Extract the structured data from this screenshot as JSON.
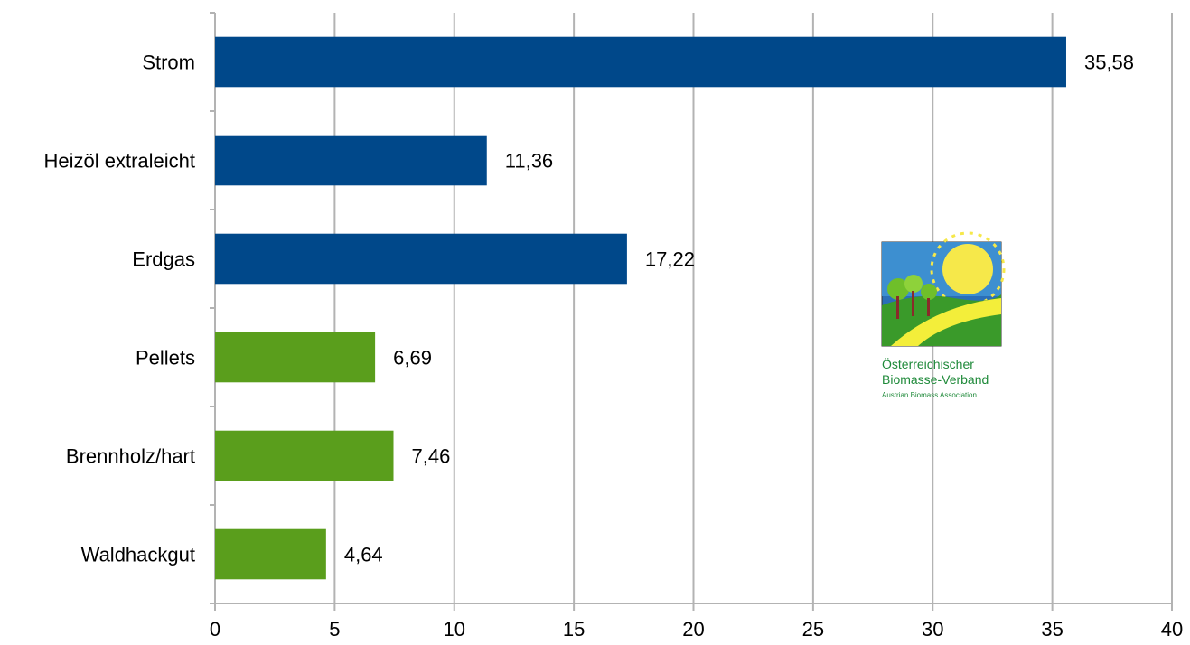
{
  "chart_data": {
    "type": "bar",
    "orientation": "horizontal",
    "title": "",
    "xlabel": "",
    "ylabel": "",
    "categories": [
      "Strom",
      "Heizöl extraleicht",
      "Erdgas",
      "Pellets",
      "Brennholz/hart",
      "Waldhackgut"
    ],
    "values": [
      35.58,
      11.36,
      17.22,
      6.69,
      7.46,
      4.64
    ],
    "value_labels": [
      "35,58",
      "11,36",
      "17,22",
      "6,69",
      "7,46",
      "4,64"
    ],
    "bar_colors": [
      "#00488a",
      "#00488a",
      "#00488a",
      "#5a9e1c",
      "#5a9e1c",
      "#5a9e1c"
    ],
    "xlim": [
      0,
      40
    ],
    "x_ticks": [
      0,
      5,
      10,
      15,
      20,
      25,
      30,
      35,
      40
    ],
    "x_tick_labels": [
      "0",
      "5",
      "10",
      "15",
      "20",
      "25",
      "30",
      "35",
      "40"
    ],
    "grid": true,
    "legend": false
  },
  "logo": {
    "icon": "biomass-landscape-icon",
    "line1": "Österreichischer",
    "line2": "Biomasse-Verband",
    "line3": "Austrian Biomass Association"
  }
}
